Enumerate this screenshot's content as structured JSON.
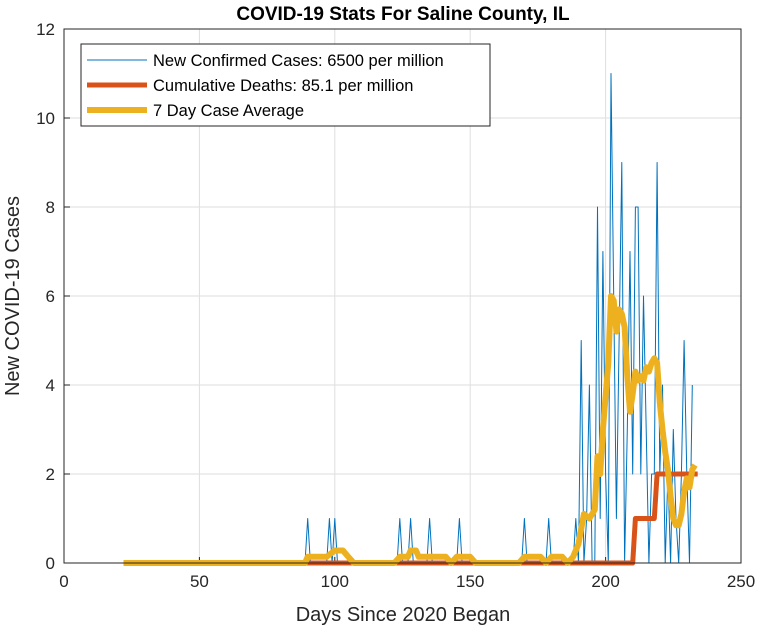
{
  "chart_data": {
    "type": "line",
    "title": "COVID-19 Stats For Saline County, IL",
    "xlabel": "Days Since 2020 Began",
    "ylabel": "New COVID-19 Cases",
    "xlim": [
      0,
      250
    ],
    "ylim": [
      0,
      12
    ],
    "xticks": [
      0,
      50,
      100,
      150,
      200,
      250
    ],
    "yticks": [
      0,
      2,
      4,
      6,
      8,
      10,
      12
    ],
    "grid": true,
    "legend_position": "top-left",
    "series": [
      {
        "name": "New Confirmed Cases: 6500 per million",
        "color": "#0072BD",
        "points": [
          [
            22,
            0
          ],
          [
            89,
            0
          ],
          [
            90,
            1
          ],
          [
            91,
            0
          ],
          [
            97,
            0
          ],
          [
            98,
            1
          ],
          [
            99,
            0
          ],
          [
            100,
            1
          ],
          [
            101,
            0
          ],
          [
            123,
            0
          ],
          [
            124,
            1
          ],
          [
            125,
            0
          ],
          [
            127,
            0
          ],
          [
            128,
            1
          ],
          [
            129,
            0
          ],
          [
            134,
            0
          ],
          [
            135,
            1
          ],
          [
            136,
            0
          ],
          [
            145,
            0
          ],
          [
            146,
            1
          ],
          [
            147,
            0
          ],
          [
            169,
            0
          ],
          [
            170,
            1
          ],
          [
            171,
            0
          ],
          [
            178,
            0
          ],
          [
            179,
            1
          ],
          [
            180,
            0
          ],
          [
            188,
            0
          ],
          [
            189,
            1
          ],
          [
            190,
            0
          ],
          [
            191,
            5
          ],
          [
            192,
            0
          ],
          [
            193,
            1
          ],
          [
            194,
            4
          ],
          [
            195,
            0
          ],
          [
            196,
            0
          ],
          [
            197,
            8
          ],
          [
            198,
            1
          ],
          [
            199,
            7
          ],
          [
            200,
            2
          ],
          [
            201,
            0
          ],
          [
            202,
            11
          ],
          [
            203,
            6
          ],
          [
            204,
            1
          ],
          [
            205,
            5
          ],
          [
            206,
            9
          ],
          [
            207,
            0
          ],
          [
            208,
            3
          ],
          [
            209,
            7
          ],
          [
            210,
            2
          ],
          [
            211,
            8
          ],
          [
            212,
            8
          ],
          [
            213,
            2
          ],
          [
            214,
            6
          ],
          [
            215,
            3
          ],
          [
            216,
            0
          ],
          [
            217,
            2
          ],
          [
            218,
            2
          ],
          [
            219,
            9
          ],
          [
            220,
            2
          ],
          [
            221,
            4
          ],
          [
            222,
            0
          ],
          [
            223,
            2
          ],
          [
            224,
            0
          ],
          [
            225,
            3
          ],
          [
            226,
            1
          ],
          [
            227,
            0
          ],
          [
            228,
            2
          ],
          [
            229,
            5
          ],
          [
            230,
            2
          ],
          [
            231,
            0
          ],
          [
            232,
            4
          ]
        ]
      },
      {
        "name": "Cumulative Deaths: 85.1 per million",
        "color": "#D95319",
        "points": [
          [
            22,
            0
          ],
          [
            210,
            0
          ],
          [
            211,
            1
          ],
          [
            218,
            1
          ],
          [
            219,
            2
          ],
          [
            234,
            2
          ]
        ]
      },
      {
        "name": "7 Day Case Average",
        "color": "#EDB120",
        "points": [
          [
            22,
            0
          ],
          [
            89,
            0
          ],
          [
            90,
            0.14
          ],
          [
            96,
            0.14
          ],
          [
            97,
            0.14
          ],
          [
            100,
            0.28
          ],
          [
            103,
            0.28
          ],
          [
            105,
            0.14
          ],
          [
            107,
            0
          ],
          [
            122,
            0
          ],
          [
            124,
            0.14
          ],
          [
            127,
            0.14
          ],
          [
            128,
            0.28
          ],
          [
            130,
            0.28
          ],
          [
            131,
            0.14
          ],
          [
            141,
            0.14
          ],
          [
            143,
            0
          ],
          [
            145,
            0.14
          ],
          [
            150,
            0.14
          ],
          [
            152,
            0
          ],
          [
            168,
            0
          ],
          [
            170,
            0.14
          ],
          [
            176,
            0.14
          ],
          [
            178,
            0
          ],
          [
            180,
            0.14
          ],
          [
            184,
            0.14
          ],
          [
            186,
            0
          ],
          [
            188,
            0.14
          ],
          [
            190,
            0.43
          ],
          [
            192,
            1.1
          ],
          [
            194,
            1.0
          ],
          [
            196,
            1.2
          ],
          [
            197,
            2.4
          ],
          [
            198,
            2.0
          ],
          [
            199,
            3.0
          ],
          [
            201,
            4.5
          ],
          [
            202,
            6.0
          ],
          [
            203,
            5.9
          ],
          [
            204,
            5.2
          ],
          [
            205,
            5.7
          ],
          [
            206,
            5.6
          ],
          [
            207,
            5.3
          ],
          [
            208,
            4.2
          ],
          [
            209,
            3.4
          ],
          [
            210,
            3.8
          ],
          [
            211,
            4.3
          ],
          [
            212,
            4.1
          ],
          [
            213,
            4.2
          ],
          [
            214,
            4.1
          ],
          [
            215,
            4.4
          ],
          [
            216,
            4.3
          ],
          [
            217,
            4.5
          ],
          [
            218,
            4.6
          ],
          [
            219,
            4.5
          ],
          [
            220,
            3.6
          ],
          [
            221,
            3.0
          ],
          [
            222,
            2.5
          ],
          [
            223,
            2.1
          ],
          [
            224,
            1.5
          ],
          [
            225,
            1.0
          ],
          [
            226,
            0.85
          ],
          [
            227,
            0.85
          ],
          [
            228,
            1.1
          ],
          [
            229,
            1.6
          ],
          [
            230,
            1.9
          ],
          [
            231,
            1.7
          ],
          [
            232,
            2.1
          ],
          [
            233,
            2.2
          ]
        ]
      }
    ]
  }
}
